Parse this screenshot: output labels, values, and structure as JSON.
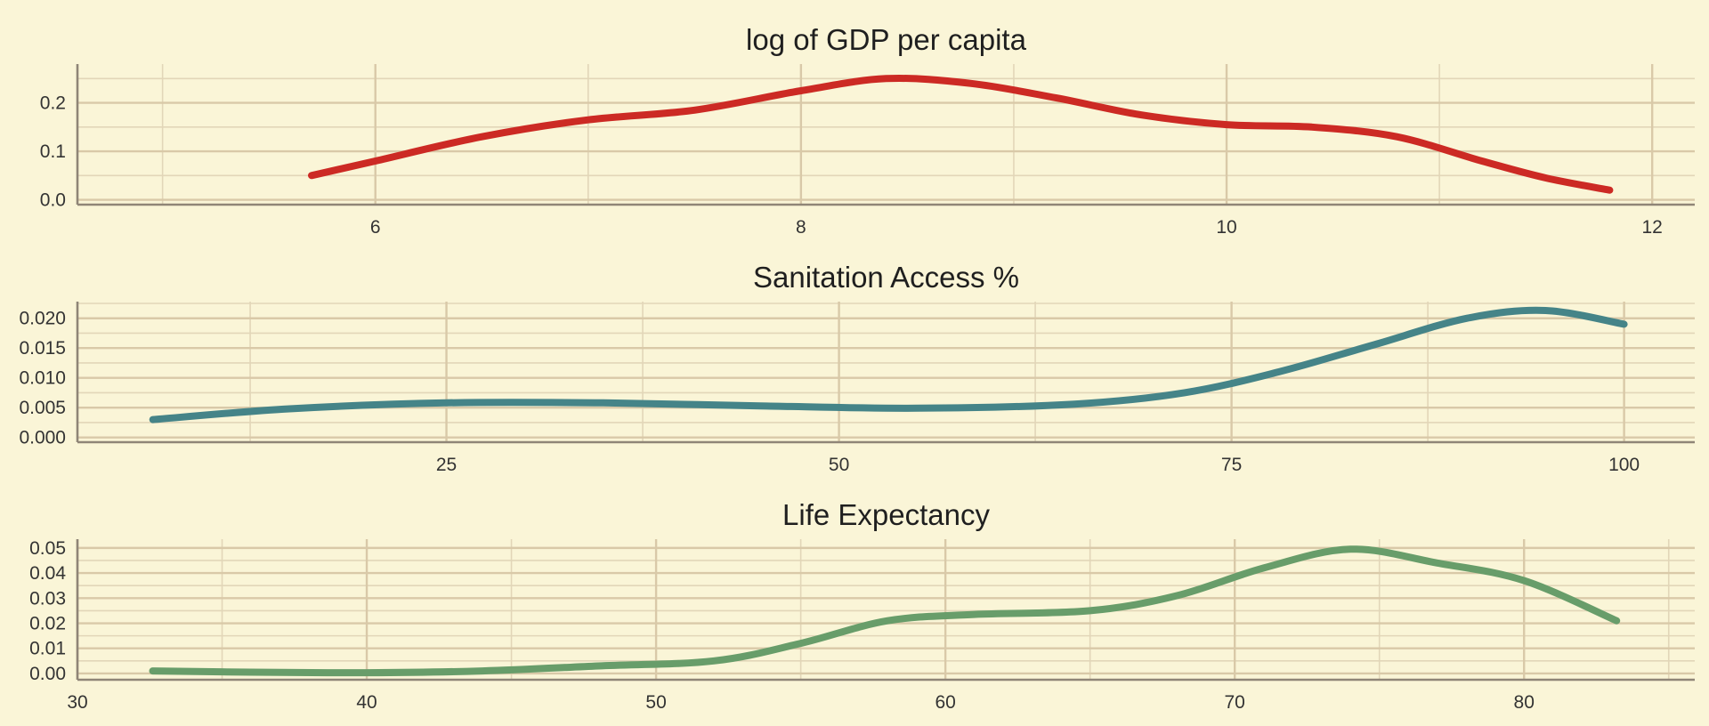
{
  "chart_data": [
    {
      "type": "line",
      "title": "log of GDP per capita",
      "color": "#cc2a24",
      "xlim": [
        4.6,
        12.2
      ],
      "ylim": [
        -0.01,
        0.28
      ],
      "xticks": [
        6,
        8,
        10,
        12
      ],
      "xtick_labels": [
        "6",
        "8",
        "10",
        "12"
      ],
      "yticks": [
        0.0,
        0.1,
        0.2
      ],
      "ytick_labels": [
        "0.0",
        "0.1",
        "0.2"
      ],
      "grid": true,
      "x": [
        5.7,
        6.0,
        6.5,
        7.0,
        7.5,
        8.0,
        8.4,
        8.8,
        9.2,
        9.6,
        10.0,
        10.4,
        10.8,
        11.2,
        11.5,
        11.8
      ],
      "y": [
        0.05,
        0.08,
        0.13,
        0.165,
        0.185,
        0.225,
        0.25,
        0.24,
        0.21,
        0.175,
        0.155,
        0.15,
        0.13,
        0.08,
        0.045,
        0.02
      ]
    },
    {
      "type": "line",
      "title": "Sanitation Access %",
      "color": "#458488",
      "xlim": [
        1.5,
        104.5
      ],
      "ylim": [
        -0.0008,
        0.0228
      ],
      "xticks": [
        25,
        50,
        75,
        100
      ],
      "xtick_labels": [
        "25",
        "50",
        "75",
        "100"
      ],
      "yticks": [
        0.0,
        0.005,
        0.01,
        0.015,
        0.02
      ],
      "ytick_labels": [
        "0.000",
        "0.005",
        "0.010",
        "0.015",
        "0.020"
      ],
      "grid": true,
      "x": [
        6.3,
        15,
        25,
        35,
        45,
        55,
        65,
        72,
        78,
        84,
        90,
        95,
        100
      ],
      "y": [
        0.003,
        0.0048,
        0.0058,
        0.0058,
        0.0053,
        0.0049,
        0.0056,
        0.0075,
        0.011,
        0.0155,
        0.02,
        0.0213,
        0.019
      ]
    },
    {
      "type": "line",
      "title": "Life Expectancy",
      "color": "#689d6a",
      "xlim": [
        30,
        85.9
      ],
      "ylim": [
        -0.0025,
        0.0535
      ],
      "xticks": [
        30,
        40,
        50,
        60,
        70,
        80
      ],
      "xtick_labels": [
        "30",
        "40",
        "50",
        "60",
        "70",
        "80"
      ],
      "yticks": [
        0.0,
        0.01,
        0.02,
        0.03,
        0.04,
        0.05
      ],
      "ytick_labels": [
        "0.00",
        "0.01",
        "0.02",
        "0.03",
        "0.04",
        "0.05"
      ],
      "grid": true,
      "x": [
        32.6,
        36,
        40,
        44,
        48,
        52,
        55,
        58,
        61,
        65,
        68,
        71,
        74,
        77,
        80,
        83.2
      ],
      "y": [
        0.001,
        0.0005,
        0.0003,
        0.001,
        0.003,
        0.005,
        0.012,
        0.021,
        0.0235,
        0.025,
        0.031,
        0.042,
        0.0495,
        0.044,
        0.037,
        0.021
      ]
    }
  ]
}
